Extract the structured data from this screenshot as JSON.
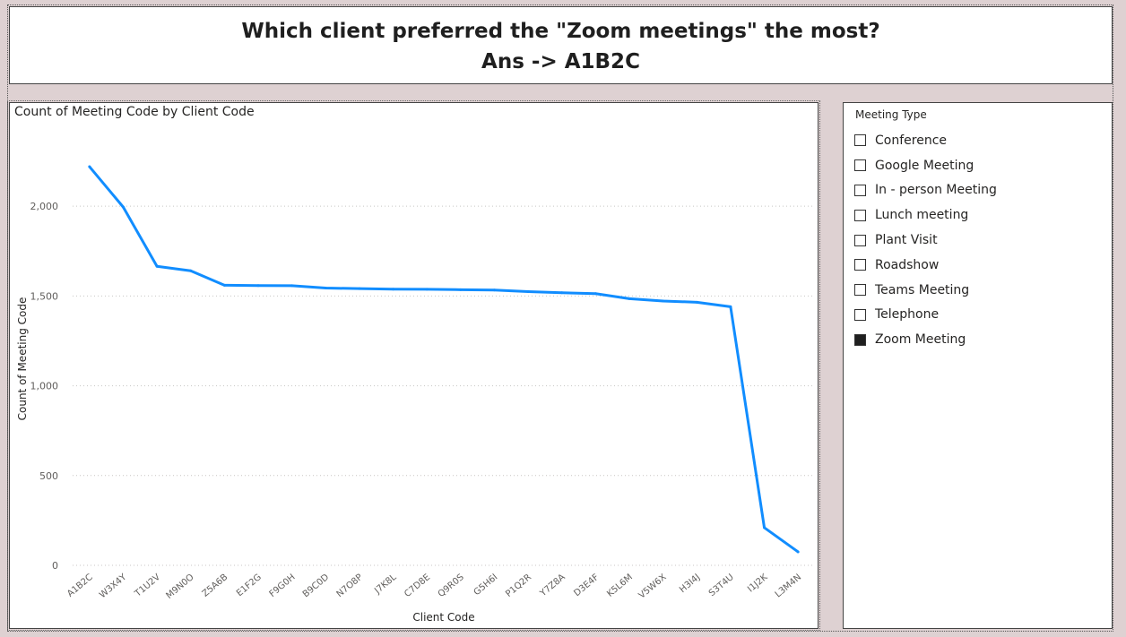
{
  "header": {
    "question": "Which client preferred the \"Zoom meetings\" the most?",
    "answer": "Ans -> A1B2C"
  },
  "chart_data": {
    "type": "line",
    "title": "Count of Meeting Code by Client Code",
    "xlabel": "Client Code",
    "ylabel": "Count of Meeting Code",
    "categories": [
      "A1B2C",
      "W3X4Y",
      "T1U2V",
      "M9N0O",
      "Z5A6B",
      "E1F2G",
      "F9G0H",
      "B9C0D",
      "N7O8P",
      "J7K8L",
      "C7D8E",
      "Q9R0S",
      "G5H6I",
      "P1Q2R",
      "Y7Z8A",
      "D3E4F",
      "K5L6M",
      "V5W6X",
      "H3I4J",
      "S3T4U",
      "I1J2K",
      "L3M4N"
    ],
    "values": [
      2220,
      1995,
      1665,
      1640,
      1560,
      1558,
      1557,
      1544,
      1541,
      1538,
      1537,
      1535,
      1533,
      1524,
      1518,
      1513,
      1485,
      1472,
      1465,
      1440,
      210,
      75
    ],
    "ylim": [
      0,
      2300
    ],
    "yticks": [
      0,
      500,
      1000,
      1500,
      2000
    ],
    "ytick_labels": [
      "0",
      "500",
      "1,000",
      "1,500",
      "2,000"
    ],
    "grid": true,
    "line_color": "#118DFF"
  },
  "slicer": {
    "header": "Meeting Type",
    "items": [
      {
        "label": "Conference",
        "checked": false
      },
      {
        "label": "Google Meeting",
        "checked": false
      },
      {
        "label": "In - person Meeting",
        "checked": false
      },
      {
        "label": "Lunch meeting",
        "checked": false
      },
      {
        "label": "Plant Visit",
        "checked": false
      },
      {
        "label": "Roadshow",
        "checked": false
      },
      {
        "label": "Teams Meeting",
        "checked": false
      },
      {
        "label": "Telephone",
        "checked": false
      },
      {
        "label": "Zoom Meeting",
        "checked": true
      }
    ]
  }
}
